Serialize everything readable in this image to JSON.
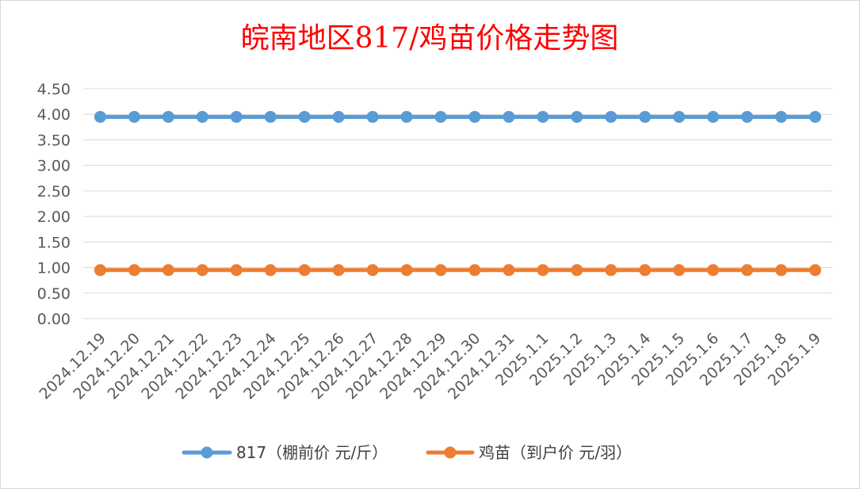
{
  "chart_data": {
    "type": "line",
    "title": "皖南地区817/鸡苗价格走势图",
    "categories": [
      "2024.12.19",
      "2024.12.20",
      "2024.12.21",
      "2024.12.22",
      "2024.12.23",
      "2024.12.24",
      "2024.12.25",
      "2024.12.26",
      "2024.12.27",
      "2024.12.28",
      "2024.12.29",
      "2024.12.30",
      "2024.12.31",
      "2025.1.1",
      "2025.1.2",
      "2025.1.3",
      "2025.1.4",
      "2025.1.5",
      "2025.1.6",
      "2025.1.7",
      "2025.1.8",
      "2025.1.9"
    ],
    "series": [
      {
        "name": "817（棚前价 元/斤）",
        "color": "#5b9bd5",
        "values": [
          3.95,
          3.95,
          3.95,
          3.95,
          3.95,
          3.95,
          3.95,
          3.95,
          3.95,
          3.95,
          3.95,
          3.95,
          3.95,
          3.95,
          3.95,
          3.95,
          3.95,
          3.95,
          3.95,
          3.95,
          3.95,
          3.95
        ]
      },
      {
        "name": "鸡苗（到户价 元/羽）",
        "color": "#ed7d31",
        "values": [
          0.95,
          0.95,
          0.95,
          0.95,
          0.95,
          0.95,
          0.95,
          0.95,
          0.95,
          0.95,
          0.95,
          0.95,
          0.95,
          0.95,
          0.95,
          0.95,
          0.95,
          0.95,
          0.95,
          0.95,
          0.95,
          0.95
        ]
      }
    ],
    "xlabel": "",
    "ylabel": "",
    "ylim": [
      0,
      4.5
    ],
    "yticks": [
      "0.00",
      "0.50",
      "1.00",
      "1.50",
      "2.00",
      "2.50",
      "3.00",
      "3.50",
      "4.00",
      "4.50"
    ],
    "grid": true,
    "legend": "bottom",
    "title_color": "#ff0000"
  }
}
